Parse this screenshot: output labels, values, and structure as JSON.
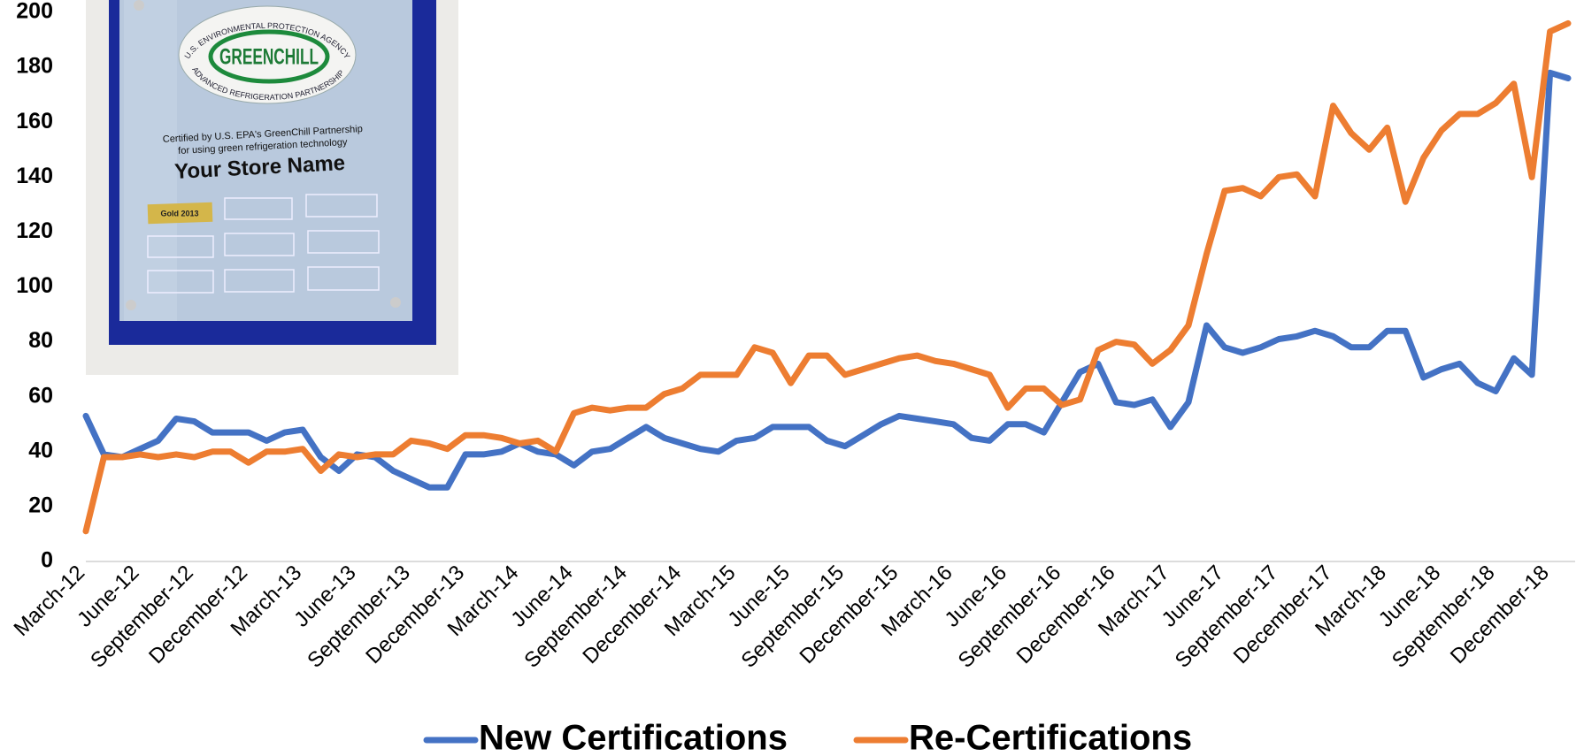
{
  "chart_data": {
    "type": "line",
    "categories": [
      "March-12",
      null,
      null,
      "June-12",
      null,
      null,
      "September-12",
      null,
      null,
      "December-12",
      null,
      null,
      "March-13",
      null,
      null,
      "June-13",
      null,
      null,
      "September-13",
      null,
      null,
      "December-13",
      null,
      null,
      "March-14",
      null,
      null,
      "June-14",
      null,
      null,
      "September-14",
      null,
      null,
      "December-14",
      null,
      null,
      "March-15",
      null,
      null,
      "June-15",
      null,
      null,
      "September-15",
      null,
      null,
      "December-15",
      null,
      null,
      "March-16",
      null,
      null,
      "June-16",
      null,
      null,
      "September-16",
      null,
      null,
      "December-16",
      null,
      null,
      "March-17",
      null,
      null,
      "June-17",
      null,
      null,
      "September-17",
      null,
      null,
      "December-17",
      null,
      null,
      "March-18",
      null,
      null,
      "June-18",
      null,
      null,
      "September-18",
      null,
      null,
      "December-18",
      null
    ],
    "series": [
      {
        "name": "New Certifications",
        "color": "#4472c4",
        "values": [
          53,
          39,
          38,
          41,
          44,
          52,
          51,
          47,
          47,
          47,
          44,
          47,
          48,
          38,
          33,
          39,
          38,
          33,
          30,
          27,
          27,
          39,
          39,
          40,
          43,
          40,
          39,
          35,
          40,
          41,
          45,
          49,
          45,
          43,
          41,
          40,
          44,
          45,
          49,
          49,
          49,
          44,
          42,
          46,
          50,
          53,
          52,
          51,
          50,
          45,
          44,
          50,
          50,
          47,
          58,
          69,
          72,
          58,
          57,
          59,
          49,
          58,
          86,
          78,
          76,
          78,
          81,
          82,
          84,
          82,
          78,
          78,
          84,
          84,
          67,
          70,
          72,
          65,
          62,
          74,
          68,
          178,
          176
        ]
      },
      {
        "name": "Re-Certifications",
        "color": "#ed7d31",
        "values": [
          11,
          38,
          38,
          39,
          38,
          39,
          38,
          40,
          40,
          36,
          40,
          40,
          41,
          33,
          39,
          38,
          39,
          39,
          44,
          43,
          41,
          46,
          46,
          45,
          43,
          44,
          40,
          54,
          56,
          55,
          56,
          56,
          61,
          63,
          68,
          68,
          68,
          78,
          76,
          65,
          75,
          75,
          68,
          70,
          72,
          74,
          75,
          73,
          72,
          70,
          68,
          56,
          63,
          63,
          57,
          59,
          77,
          80,
          79,
          72,
          77,
          86,
          112,
          135,
          136,
          133,
          140,
          141,
          133,
          166,
          156,
          150,
          158,
          131,
          147,
          157,
          163,
          163,
          167,
          174,
          140,
          193,
          196
        ]
      }
    ],
    "ylim": [
      0,
      200
    ],
    "yticks": [
      0,
      20,
      40,
      60,
      80,
      100,
      120,
      140,
      160,
      180,
      200
    ],
    "grid": false,
    "legend": "bottom"
  },
  "inset": {
    "agency": "U.S. ENVIRONMENTAL PROTECTION AGENCY",
    "logo": "GREENCHILL",
    "partnership": "ADVANCED REFRIGERATION PARTNERSHIP",
    "certified_line1": "Certified by U.S. EPA's GreenChill Partnership",
    "certified_line2": "for using green refrigeration technology",
    "store": "Your Store Name",
    "badge": "Gold 2013"
  }
}
